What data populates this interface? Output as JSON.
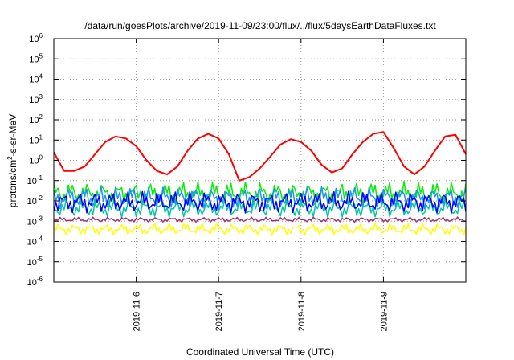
{
  "chart_data": {
    "type": "line",
    "title": "/data/run/goesPlots/archive/2019-11-09/23:00/flux/../flux/5daysEarthDataFluxes.txt",
    "xlabel": "Coordinated Universal Time (UTC)",
    "ylabel": {
      "base": "protons/cm",
      "sup": "2",
      "rest": "-s-sr-MeV"
    },
    "yscale": "log",
    "ylim": [
      1e-06,
      1000000.0
    ],
    "xlim": [
      "2019-11-05T00:00",
      "2019-11-10T00:00"
    ],
    "grid": true,
    "legend": "none",
    "y_ticks": [
      {
        "exp": "-6",
        "label": "10"
      },
      {
        "exp": "-5",
        "label": "10"
      },
      {
        "exp": "-4",
        "label": "10"
      },
      {
        "exp": "-3",
        "label": "10"
      },
      {
        "exp": "-2",
        "label": "10"
      },
      {
        "exp": "-1",
        "label": "10"
      },
      {
        "exp": "0",
        "label": "10"
      },
      {
        "exp": "1",
        "label": "10"
      },
      {
        "exp": "2",
        "label": "10"
      },
      {
        "exp": "3",
        "label": "10"
      },
      {
        "exp": "4",
        "label": "10"
      },
      {
        "exp": "5",
        "label": "10"
      },
      {
        "exp": "6",
        "label": "10"
      }
    ],
    "x_ticks": [
      "2019-11-6",
      "2019-11-7",
      "2019-11-8",
      "2019-11-9"
    ],
    "series": [
      {
        "color": "#ff0000",
        "x": [
          "2019-11-05T00:00",
          "2019-11-05T03:00",
          "2019-11-05T06:00",
          "2019-11-05T09:00",
          "2019-11-05T12:00",
          "2019-11-05T15:00",
          "2019-11-05T18:00",
          "2019-11-05T21:00",
          "2019-11-06T00:00",
          "2019-11-06T03:00",
          "2019-11-06T06:00",
          "2019-11-06T09:00",
          "2019-11-06T12:00",
          "2019-11-06T15:00",
          "2019-11-06T18:00",
          "2019-11-06T21:00",
          "2019-11-07T00:00",
          "2019-11-07T03:00",
          "2019-11-07T06:00",
          "2019-11-07T09:00",
          "2019-11-07T12:00",
          "2019-11-07T15:00",
          "2019-11-07T18:00",
          "2019-11-07T21:00",
          "2019-11-08T00:00",
          "2019-11-08T03:00",
          "2019-11-08T06:00",
          "2019-11-08T09:00",
          "2019-11-08T12:00",
          "2019-11-08T15:00",
          "2019-11-08T18:00",
          "2019-11-08T21:00",
          "2019-11-09T00:00",
          "2019-11-09T03:00",
          "2019-11-09T06:00",
          "2019-11-09T09:00",
          "2019-11-09T12:00",
          "2019-11-09T15:00",
          "2019-11-09T18:00",
          "2019-11-09T21:00",
          "2019-11-10T00:00"
        ],
        "y": [
          2.5,
          0.3,
          0.3,
          0.5,
          2,
          8,
          15,
          12,
          5,
          1,
          0.3,
          0.2,
          0.5,
          3,
          12,
          20,
          12,
          2,
          0.1,
          0.15,
          0.4,
          1.5,
          6,
          11,
          8,
          3,
          0.6,
          0.25,
          0.4,
          2,
          8,
          20,
          25,
          4,
          0.5,
          0.2,
          0.5,
          3,
          15,
          18,
          2
        ]
      },
      {
        "color": "#00ee00",
        "x": [
          "2019-11-05T00:00",
          "2019-11-10T00:00"
        ],
        "y": [
          0.02,
          0.02
        ],
        "band": [
          0.006,
          0.09
        ]
      },
      {
        "color": "#1e90ff",
        "x": [
          "2019-11-05T00:00",
          "2019-11-10T00:00"
        ],
        "y": [
          0.012,
          0.012
        ],
        "band": [
          0.004,
          0.05
        ]
      },
      {
        "color": "#00c8a0",
        "x": [
          "2019-11-05T00:00",
          "2019-11-10T00:00"
        ],
        "y": [
          0.004,
          0.004
        ],
        "band": [
          0.0015,
          0.012
        ]
      },
      {
        "color": "#0000ff",
        "x": [
          "2019-11-05T00:00",
          "2019-11-10T00:00"
        ],
        "y": [
          0.007,
          0.007
        ],
        "band": [
          0.0025,
          0.03
        ]
      },
      {
        "color": "#a03070",
        "x": [
          "2019-11-05T00:00",
          "2019-11-10T00:00"
        ],
        "y": [
          0.0012,
          0.0012
        ],
        "band": [
          0.0009,
          0.0016
        ]
      },
      {
        "color": "#ffff00",
        "x": [
          "2019-11-05T00:00",
          "2019-11-10T00:00"
        ],
        "y": [
          0.0004,
          0.0004
        ],
        "band": [
          0.0002,
          0.0008
        ]
      }
    ]
  }
}
